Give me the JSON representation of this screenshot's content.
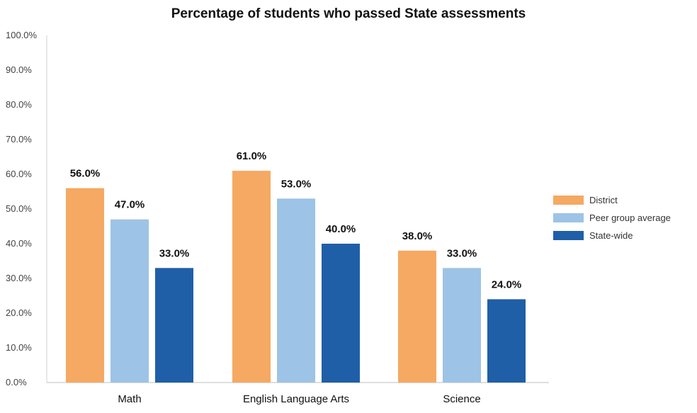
{
  "chart_data": {
    "type": "bar",
    "title": "Percentage of students who passed State assessments",
    "xlabel": "",
    "ylabel": "",
    "ylim": [
      0,
      100
    ],
    "yticks": [
      0,
      10,
      20,
      30,
      40,
      50,
      60,
      70,
      80,
      90,
      100
    ],
    "ytick_labels": [
      "0.0%",
      "10.0%",
      "20.0%",
      "30.0%",
      "40.0%",
      "50.0%",
      "60.0%",
      "70.0%",
      "80.0%",
      "90.0%",
      "100.0%"
    ],
    "categories": [
      "Math",
      "English Language Arts",
      "Science"
    ],
    "series": [
      {
        "name": "District",
        "color": "#f5a962",
        "values": [
          56,
          61,
          38
        ],
        "labels": [
          "56.0%",
          "61.0%",
          "38.0%"
        ]
      },
      {
        "name": "Peer group average",
        "color": "#9dc3e6",
        "values": [
          47,
          53,
          33
        ],
        "labels": [
          "47.0%",
          "53.0%",
          "33.0%"
        ]
      },
      {
        "name": "State-wide",
        "color": "#1f5fa8",
        "values": [
          33,
          40,
          24
        ],
        "labels": [
          "33.0%",
          "40.0%",
          "24.0%"
        ]
      }
    ],
    "grid": false,
    "legend_position": "right"
  }
}
